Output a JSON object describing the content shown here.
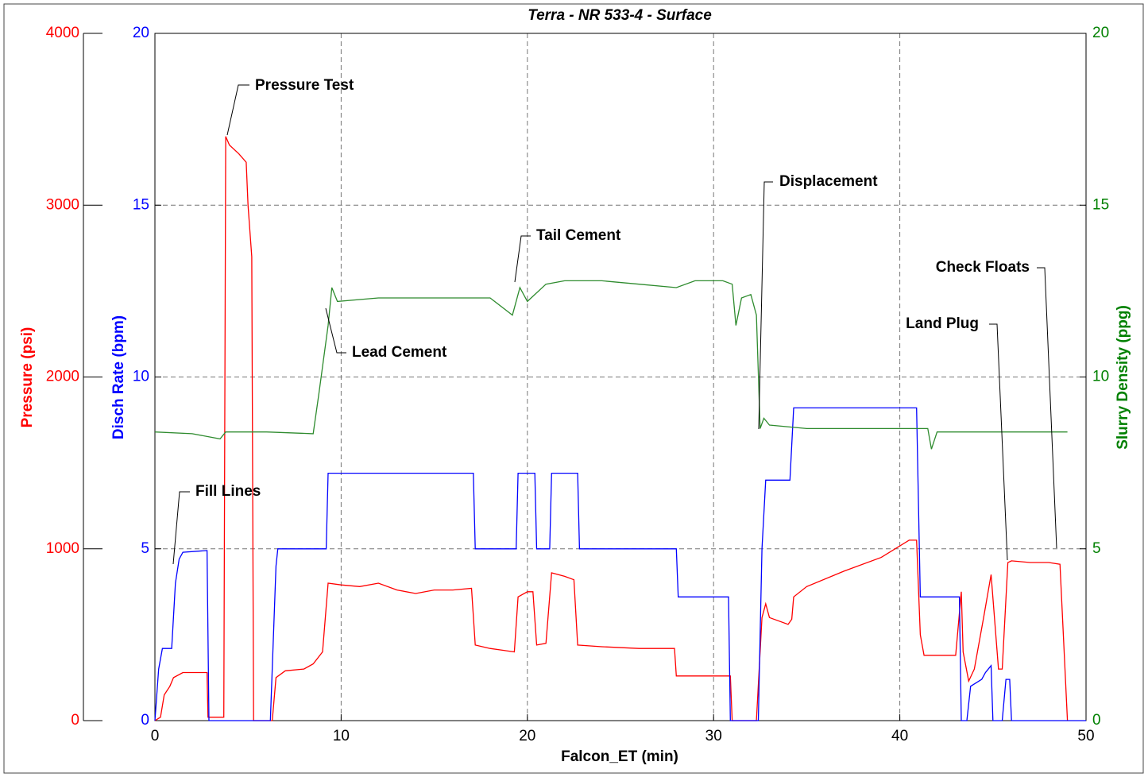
{
  "chart_data": {
    "type": "line",
    "title": "Terra - NR 533-4 - Surface",
    "x_label": "Falcon_ET (min)",
    "y_label": "Disch Rate (bpm)",
    "y2_label": "Slurry Density (ppg)",
    "y3_label": "Pressure (psi)",
    "xlim": [
      0,
      50
    ],
    "xticks": [
      0,
      10,
      20,
      30,
      40,
      50
    ],
    "ylim": [
      0,
      20
    ],
    "yticks": [
      0,
      5,
      10,
      15,
      20
    ],
    "y2lim": [
      0,
      20
    ],
    "y2ticks": [
      0,
      5,
      10,
      15,
      20
    ],
    "y3lim": [
      0,
      4000
    ],
    "y3ticks": [
      0,
      1000,
      2000,
      3000,
      4000
    ],
    "grid": true,
    "axis_colors": {
      "y": "#0000ff",
      "y2": "#008000",
      "y3": "#ff0000"
    },
    "series": [
      {
        "name": "Pressure",
        "color": "#ff0000",
        "axis": "y3",
        "x": [
          0,
          0.3,
          0.5,
          0.8,
          1.0,
          1.5,
          2.8,
          2.85,
          3.7,
          3.8,
          4.0,
          4.5,
          4.9,
          5.0,
          5.2,
          5.3,
          6.3,
          6.5,
          7,
          8,
          8.5,
          9.0,
          9.3,
          10,
          11,
          12,
          13,
          14,
          15,
          16,
          17,
          17.2,
          18,
          19.3,
          19.5,
          20,
          20.3,
          20.5,
          21,
          21.3,
          22,
          22.5,
          22.7,
          24,
          26,
          27.9,
          28,
          30,
          30.9,
          31,
          32.3,
          32.6,
          32.8,
          33,
          34,
          34.2,
          34.3,
          35,
          37,
          39,
          40.5,
          40.9,
          41.1,
          41.3,
          43,
          43.3,
          43.4,
          43.7,
          44,
          44.5,
          44.9,
          45.3,
          45.5,
          45.8,
          46,
          47,
          48,
          48.6,
          49
        ],
        "values": [
          0,
          20,
          150,
          200,
          250,
          280,
          280,
          20,
          20,
          3400,
          3350,
          3300,
          3250,
          3000,
          2700,
          0,
          0,
          250,
          290,
          300,
          330,
          400,
          800,
          790,
          780,
          800,
          760,
          740,
          760,
          760,
          770,
          440,
          420,
          400,
          720,
          750,
          750,
          440,
          450,
          860,
          840,
          820,
          440,
          430,
          420,
          420,
          260,
          260,
          260,
          0,
          0,
          600,
          680,
          600,
          560,
          590,
          720,
          780,
          870,
          950,
          1050,
          1050,
          500,
          380,
          380,
          750,
          400,
          230,
          300,
          600,
          850,
          300,
          300,
          920,
          930,
          920,
          920,
          910,
          0
        ]
      },
      {
        "name": "Disch Rate",
        "color": "#0000ff",
        "axis": "y",
        "x": [
          0,
          0.2,
          0.4,
          0.9,
          1.1,
          1.3,
          1.5,
          2.8,
          2.9,
          6.2,
          6.5,
          6.6,
          9.2,
          9.3,
          17.1,
          17.2,
          19.4,
          19.5,
          20.4,
          20.5,
          21.2,
          21.3,
          22.7,
          22.8,
          28,
          28.1,
          30.8,
          30.9,
          32.4,
          32.6,
          32.8,
          34.1,
          34.3,
          40.9,
          41.1,
          43.2,
          43.3,
          43.6,
          43.8,
          44.4,
          44.6,
          44.9,
          45,
          45.5,
          45.7,
          45.9,
          46,
          50
        ],
        "values": [
          0,
          1.5,
          2.1,
          2.1,
          4.0,
          4.7,
          4.9,
          4.95,
          0,
          0,
          4.5,
          5.0,
          5.0,
          7.2,
          7.2,
          5.0,
          5.0,
          7.2,
          7.2,
          5.0,
          5.0,
          7.2,
          7.2,
          5.0,
          5.0,
          3.6,
          3.6,
          0,
          0,
          5,
          7.0,
          7.0,
          9.1,
          9.1,
          3.6,
          3.6,
          0,
          0,
          1.0,
          1.2,
          1.4,
          1.6,
          0,
          0,
          1.2,
          1.2,
          0,
          0
        ]
      },
      {
        "name": "Slurry Density",
        "color": "#2e8b2e",
        "axis": "y2",
        "x": [
          0,
          2,
          3.5,
          3.8,
          6,
          8.5,
          8.8,
          9.3,
          9.5,
          9.8,
          12,
          15,
          18,
          19.2,
          19.6,
          20,
          21,
          22,
          24,
          26,
          28,
          29,
          30.5,
          31,
          31.2,
          31.5,
          32,
          32.3,
          32.5,
          32.7,
          33,
          35,
          38,
          41.5,
          41.7,
          42,
          43,
          46,
          49
        ],
        "values": [
          8.4,
          8.35,
          8.2,
          8.4,
          8.4,
          8.35,
          9.5,
          11.5,
          12.6,
          12.2,
          12.3,
          12.3,
          12.3,
          11.8,
          12.6,
          12.2,
          12.7,
          12.8,
          12.8,
          12.7,
          12.6,
          12.8,
          12.8,
          12.7,
          11.5,
          12.3,
          12.4,
          11.8,
          8.5,
          8.8,
          8.6,
          8.5,
          8.5,
          8.5,
          7.9,
          8.4,
          8.4,
          8.4,
          8.4
        ]
      }
    ],
    "annotations": [
      "Pressure Test",
      "Fill Lines",
      "Lead Cement",
      "Tail Cement",
      "Displacement",
      "Check Floats",
      "Land Plug"
    ]
  }
}
